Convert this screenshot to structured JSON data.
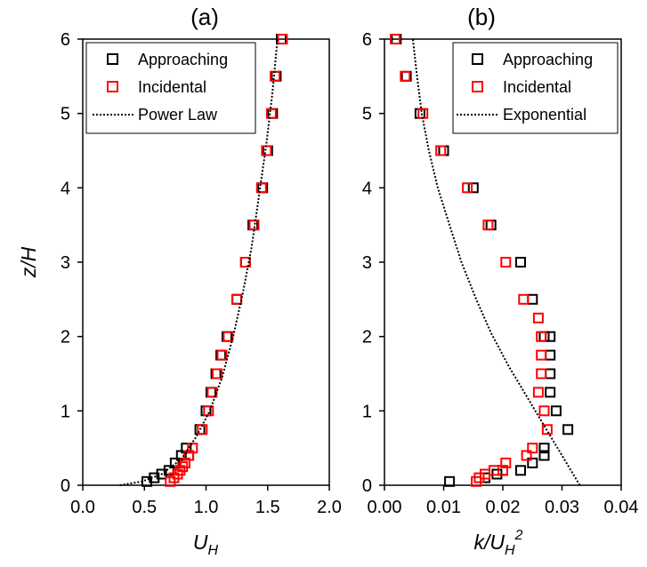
{
  "figure": {
    "ylabel_main": "z",
    "ylabel_sub": "H"
  },
  "chart_data": [
    {
      "type": "scatter",
      "panel_title": "(a)",
      "xlabel_main": "U",
      "xlabel_sub": "H",
      "xlim": [
        0,
        2
      ],
      "ylim": [
        0,
        6
      ],
      "x_ticks": [
        "0.0",
        "0.5",
        "1.0",
        "1.5",
        "2.0"
      ],
      "y_ticks": [
        "0",
        "1",
        "2",
        "3",
        "4",
        "5",
        "6"
      ],
      "legend_position": "top-right",
      "series": [
        {
          "name": "Approaching",
          "marker": "square",
          "color": "#000000",
          "x": [
            0.52,
            0.58,
            0.64,
            0.7,
            0.75,
            0.8,
            0.84,
            0.86,
            0.95,
            1.0,
            1.04,
            1.08,
            1.12,
            1.17,
            1.25,
            1.32,
            1.38,
            1.46,
            1.5,
            1.54,
            1.57,
            1.61
          ],
          "y": [
            0.05,
            0.1,
            0.15,
            0.2,
            0.3,
            0.4,
            0.5,
            0.4,
            0.75,
            1.0,
            1.25,
            1.5,
            1.75,
            2.0,
            2.5,
            3.0,
            3.5,
            4.0,
            4.5,
            5.0,
            5.5,
            6.0
          ]
        },
        {
          "name": "Incidental",
          "marker": "square",
          "color": "#ff0000",
          "x": [
            0.71,
            0.74,
            0.77,
            0.79,
            0.81,
            0.83,
            0.86,
            0.89,
            0.97,
            1.02,
            1.05,
            1.09,
            1.13,
            1.18,
            1.25,
            1.32,
            1.39,
            1.45,
            1.49,
            1.53,
            1.56,
            1.62
          ],
          "y": [
            0.05,
            0.1,
            0.15,
            0.2,
            0.25,
            0.3,
            0.4,
            0.5,
            0.75,
            1.0,
            1.25,
            1.5,
            1.75,
            2.0,
            2.5,
            3.0,
            3.5,
            4.0,
            4.5,
            5.0,
            5.5,
            6.0
          ]
        },
        {
          "name": "Power Law",
          "line": "dotted",
          "color": "#000000",
          "x": [
            0.3,
            0.48,
            0.64,
            0.8,
            0.92,
            1.03,
            1.13,
            1.22,
            1.3,
            1.37,
            1.43,
            1.49,
            1.54,
            1.58
          ],
          "y": [
            0.0,
            0.05,
            0.15,
            0.35,
            0.65,
            1.0,
            1.45,
            2.0,
            2.6,
            3.2,
            3.9,
            4.6,
            5.3,
            6.0
          ]
        }
      ]
    },
    {
      "type": "scatter",
      "panel_title": "(b)",
      "xlabel_main": "k/U",
      "xlabel_sub": "H",
      "xlabel_sup": "2",
      "xlim": [
        0,
        0.04
      ],
      "ylim": [
        0,
        6
      ],
      "x_ticks": [
        "0.00",
        "0.01",
        "0.02",
        "0.03",
        "0.04"
      ],
      "y_ticks": [
        "0",
        "1",
        "2",
        "3",
        "4",
        "5",
        "6"
      ],
      "legend_position": "top-right",
      "series": [
        {
          "name": "Approaching",
          "marker": "square",
          "color": "#000000",
          "x": [
            0.011,
            0.017,
            0.019,
            0.02,
            0.023,
            0.025,
            0.027,
            0.027,
            0.031,
            0.029,
            0.028,
            0.028,
            0.028,
            0.028,
            0.027,
            0.025,
            0.023,
            0.018,
            0.015,
            0.01,
            0.006,
            0.0037,
            0.002
          ],
          "y": [
            0.05,
            0.1,
            0.15,
            0.2,
            0.2,
            0.3,
            0.4,
            0.5,
            0.75,
            1.0,
            1.25,
            1.5,
            1.75,
            2.0,
            2.0,
            2.5,
            3.0,
            3.5,
            4.0,
            4.5,
            5.0,
            5.5,
            6.0
          ]
        },
        {
          "name": "Incidental",
          "marker": "square",
          "color": "#ff0000",
          "x": [
            0.0155,
            0.016,
            0.017,
            0.0185,
            0.02,
            0.0205,
            0.024,
            0.025,
            0.0275,
            0.027,
            0.026,
            0.0265,
            0.0265,
            0.0265,
            0.026,
            0.0235,
            0.0205,
            0.0175,
            0.014,
            0.0095,
            0.0065,
            0.0035,
            0.0018
          ],
          "y": [
            0.05,
            0.1,
            0.15,
            0.2,
            0.2,
            0.3,
            0.4,
            0.5,
            0.75,
            1.0,
            1.25,
            1.5,
            1.75,
            2.0,
            2.25,
            2.5,
            3.0,
            3.5,
            4.0,
            4.5,
            5.0,
            5.5,
            6.0
          ]
        },
        {
          "name": "Exponential",
          "line": "dotted",
          "color": "#000000",
          "x": [
            0.033,
            0.03,
            0.027,
            0.024,
            0.021,
            0.018,
            0.0155,
            0.013,
            0.011,
            0.009,
            0.0075,
            0.0063,
            0.0055,
            0.0048
          ],
          "y": [
            0.0,
            0.4,
            0.8,
            1.2,
            1.6,
            2.05,
            2.5,
            3.0,
            3.5,
            4.0,
            4.5,
            5.0,
            5.5,
            6.0
          ]
        }
      ]
    }
  ]
}
